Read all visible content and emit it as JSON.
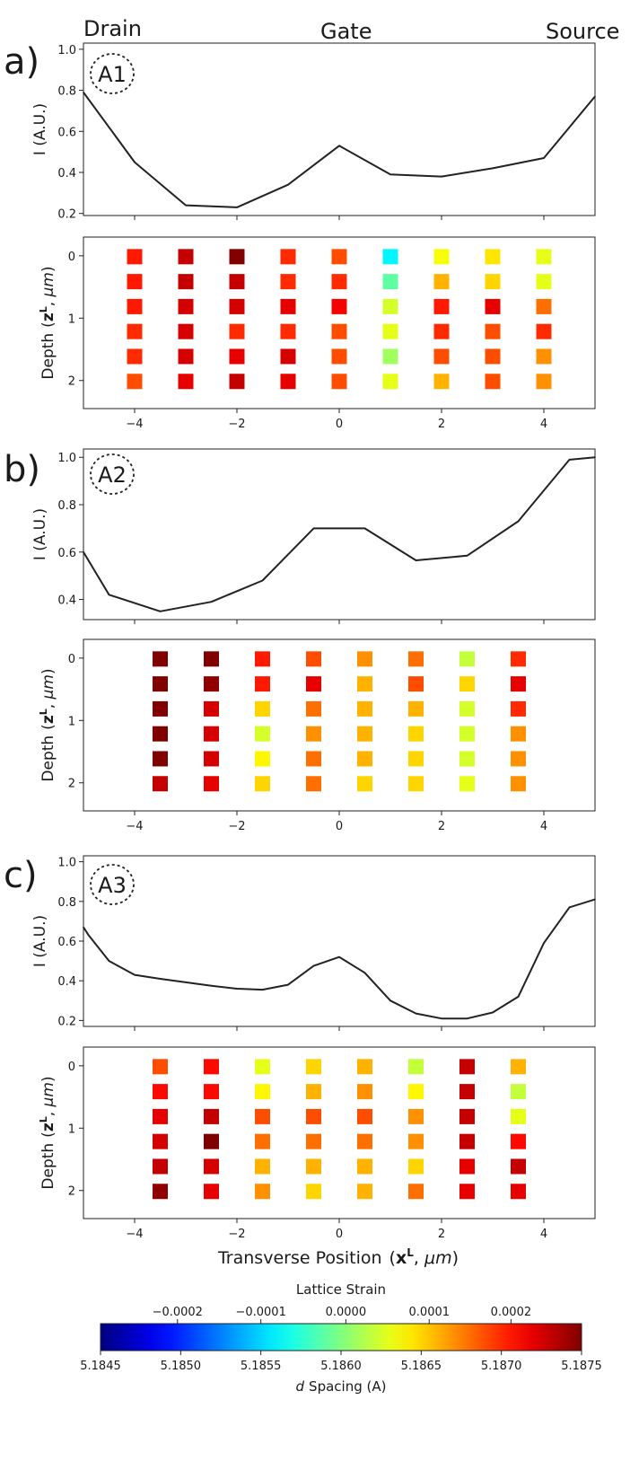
{
  "header": {
    "drain": "Drain",
    "gate": "Gate",
    "source": "Source"
  },
  "x_axis_label": {
    "main": "Transverse Position",
    "symbol": "x",
    "sup": "L",
    "unit": "μm"
  },
  "y_axis_labels": {
    "intensity": "I (A.U.)",
    "depth": {
      "main": "Depth",
      "symbol": "z",
      "sup": "L",
      "unit": "μm"
    }
  },
  "colorbar": {
    "title": "Lattice Strain",
    "label_italic": "d",
    "label_rest": "Spacing (A)",
    "dmin": 5.1845,
    "dmax": 5.1875,
    "bottom_ticks": [
      "5.1845",
      "5.1850",
      "5.1855",
      "5.1860",
      "5.1865",
      "5.1870",
      "5.1875"
    ],
    "top_ticks": [
      {
        "label": "−0.0002",
        "d": 5.18498
      },
      {
        "label": "−0.0001",
        "d": 5.1855
      },
      {
        "label": "0.0000",
        "d": 5.18603
      },
      {
        "label": "0.0001",
        "d": 5.18655
      },
      {
        "label": "0.0002",
        "d": 5.18706
      }
    ]
  },
  "chart_data": [
    {
      "panel": "a)",
      "annotation": "A1",
      "type": "line",
      "xlim": [
        -5,
        5
      ],
      "ylim": [
        0.19,
        1.03
      ],
      "yticks": [
        "0.2",
        "0.4",
        "0.6",
        "0.8",
        "1.0"
      ],
      "x": [
        -5,
        -4,
        -3,
        -2,
        -1,
        0,
        1,
        2,
        3,
        4,
        5
      ],
      "y": [
        0.79,
        0.45,
        0.24,
        0.23,
        0.34,
        0.53,
        0.39,
        0.38,
        0.42,
        0.47,
        0.77
      ],
      "strain_map": {
        "type": "heatmap",
        "xlim": [
          -5,
          5
        ],
        "xticks": [
          "−4",
          "−2",
          "0",
          "2",
          "4"
        ],
        "yticks": [
          "0",
          "1",
          "2"
        ],
        "x": [
          -4,
          -3,
          -2,
          -1,
          0,
          1,
          2,
          3,
          4
        ],
        "depth": [
          0,
          0.4,
          0.8,
          1.2,
          1.6,
          2.0
        ],
        "d_spacing": [
          [
            5.18705,
            5.18705,
            5.18705,
            5.187,
            5.187,
            5.1869
          ],
          [
            5.1873,
            5.1873,
            5.18725,
            5.18725,
            5.18725,
            5.1872
          ],
          [
            5.1875,
            5.1873,
            5.18725,
            5.187,
            5.1872,
            5.1873
          ],
          [
            5.187,
            5.187,
            5.1872,
            5.187,
            5.18725,
            5.1872
          ],
          [
            5.1869,
            5.187,
            5.18715,
            5.1869,
            5.1869,
            5.1869
          ],
          [
            5.1856,
            5.1859,
            5.18625,
            5.1863,
            5.1861,
            5.1863
          ],
          [
            5.18635,
            5.1866,
            5.18705,
            5.187,
            5.1869,
            5.1866
          ],
          [
            5.18645,
            5.1865,
            5.1872,
            5.1869,
            5.1869,
            5.1869
          ],
          [
            5.1863,
            5.1863,
            5.1868,
            5.187,
            5.1867,
            5.1867
          ]
        ]
      }
    },
    {
      "panel": "b)",
      "annotation": "A2",
      "type": "line",
      "xlim": [
        -5,
        5
      ],
      "ylim": [
        0.315,
        1.035
      ],
      "yticks": [
        "0.4",
        "0.6",
        "0.8",
        "1.0"
      ],
      "x": [
        -5,
        -4.5,
        -3.5,
        -2.5,
        -1.5,
        -0.5,
        0.5,
        1.5,
        2.5,
        3.5,
        4.5,
        5
      ],
      "y": [
        0.6,
        0.42,
        0.35,
        0.39,
        0.48,
        0.7,
        0.7,
        0.565,
        0.585,
        0.73,
        0.99,
        1.0
      ],
      "strain_map": {
        "type": "heatmap",
        "xlim": [
          -5,
          5
        ],
        "xticks": [
          "−4",
          "−2",
          "0",
          "2",
          "4"
        ],
        "yticks": [
          "0",
          "1",
          "2"
        ],
        "x": [
          -3.5,
          -2.5,
          -1.5,
          -0.5,
          0.5,
          1.5,
          2.5,
          3.5
        ],
        "depth": [
          0,
          0.4,
          0.8,
          1.2,
          1.6,
          2.0
        ],
        "d_spacing": [
          [
            5.1875,
            5.1875,
            5.1875,
            5.1875,
            5.1875,
            5.1873
          ],
          [
            5.1875,
            5.18745,
            5.18725,
            5.18725,
            5.18725,
            5.1872
          ],
          [
            5.18705,
            5.18705,
            5.1865,
            5.18625,
            5.1864,
            5.1865
          ],
          [
            5.1869,
            5.1872,
            5.1868,
            5.1867,
            5.1868,
            5.1868
          ],
          [
            5.1867,
            5.1866,
            5.1866,
            5.1866,
            5.1866,
            5.1865
          ],
          [
            5.1868,
            5.1869,
            5.1866,
            5.1865,
            5.1865,
            5.1865
          ],
          [
            5.1862,
            5.1865,
            5.18625,
            5.18625,
            5.18625,
            5.1863
          ],
          [
            5.187,
            5.1872,
            5.187,
            5.1867,
            5.1867,
            5.1867
          ]
        ]
      }
    },
    {
      "panel": "c)",
      "annotation": "A3",
      "type": "line",
      "xlim": [
        -5,
        5
      ],
      "ylim": [
        0.17,
        1.03
      ],
      "yticks": [
        "0.2",
        "0.4",
        "0.6",
        "0.8",
        "1.0"
      ],
      "x": [
        -5,
        -4.9,
        -4.5,
        -4,
        -3.5,
        -2.5,
        -2,
        -1.5,
        -1,
        -0.5,
        0,
        0.5,
        1,
        1.5,
        2,
        2.5,
        3,
        3.5,
        4,
        4.5,
        5
      ],
      "y": [
        0.67,
        0.63,
        0.5,
        0.43,
        0.41,
        0.375,
        0.36,
        0.355,
        0.38,
        0.475,
        0.52,
        0.44,
        0.3,
        0.235,
        0.21,
        0.21,
        0.24,
        0.32,
        0.59,
        0.77,
        0.81
      ],
      "strain_map": {
        "type": "heatmap",
        "xlim": [
          -5,
          5
        ],
        "xticks": [
          "−4",
          "−2",
          "0",
          "2",
          "4"
        ],
        "yticks": [
          "0",
          "1",
          "2"
        ],
        "x": [
          -3.5,
          -2.5,
          -1.5,
          -0.5,
          0.5,
          1.5,
          2.5,
          3.5
        ],
        "depth": [
          0,
          0.4,
          0.8,
          1.2,
          1.6,
          2.0
        ],
        "d_spacing": [
          [
            5.1869,
            5.1871,
            5.1872,
            5.18725,
            5.1873,
            5.18745
          ],
          [
            5.1871,
            5.1871,
            5.1873,
            5.1875,
            5.18725,
            5.1872
          ],
          [
            5.1863,
            5.1864,
            5.1869,
            5.1868,
            5.1866,
            5.1867
          ],
          [
            5.1865,
            5.1866,
            5.1869,
            5.1868,
            5.1866,
            5.1865
          ],
          [
            5.1866,
            5.1867,
            5.1869,
            5.1868,
            5.1866,
            5.1866
          ],
          [
            5.1862,
            5.1864,
            5.1867,
            5.1867,
            5.1865,
            5.1868
          ],
          [
            5.1873,
            5.1873,
            5.1873,
            5.1873,
            5.1872,
            5.1872
          ],
          [
            5.1866,
            5.1862,
            5.1863,
            5.1871,
            5.1873,
            5.1872
          ]
        ]
      }
    }
  ]
}
